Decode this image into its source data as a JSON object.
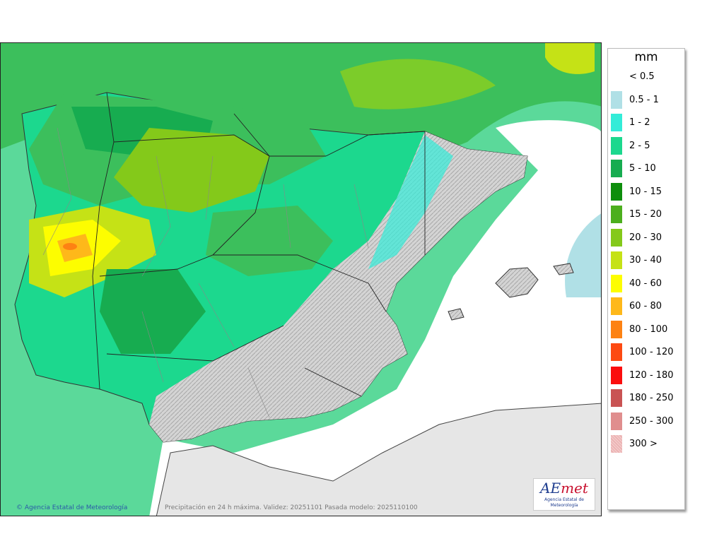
{
  "map": {
    "credit": "Agencia Estatal de Meteorología",
    "caption": "Precipitación en 24 h máxima. Validez: 20251101 Pasada modelo: 2025110100",
    "logo": {
      "main_a": "AE",
      "main_b": "met",
      "sub": "Agencia Estatal de Meteorología"
    }
  },
  "legend": {
    "unit": "mm",
    "items": [
      {
        "label": "< 0.5",
        "color": ""
      },
      {
        "label": "0.5 - 1",
        "color": "#b0e0e6"
      },
      {
        "label": "1 - 2",
        "color": "#33ecd8"
      },
      {
        "label": "2 - 5",
        "color": "#1cd88e"
      },
      {
        "label": "5 - 10",
        "color": "#17ac50"
      },
      {
        "label": "10 - 15",
        "color": "#0e8e0c"
      },
      {
        "label": "15 - 20",
        "color": "#4caf1e"
      },
      {
        "label": "20 - 30",
        "color": "#84c91a"
      },
      {
        "label": "30 - 40",
        "color": "#c5e216"
      },
      {
        "label": "40 - 60",
        "color": "#fdfd00"
      },
      {
        "label": "60 - 80",
        "color": "#feb81a"
      },
      {
        "label": "80 - 100",
        "color": "#fd8213"
      },
      {
        "label": "100 - 120",
        "color": "#fd4a12"
      },
      {
        "label": "120 - 180",
        "color": "#fb0d0d"
      },
      {
        "label": "180 - 250",
        "color": "#c95353"
      },
      {
        "label": "250 - 300",
        "color": "#e08e8e"
      },
      {
        "label": "300 >",
        "color": "#f2c7c7"
      }
    ]
  }
}
